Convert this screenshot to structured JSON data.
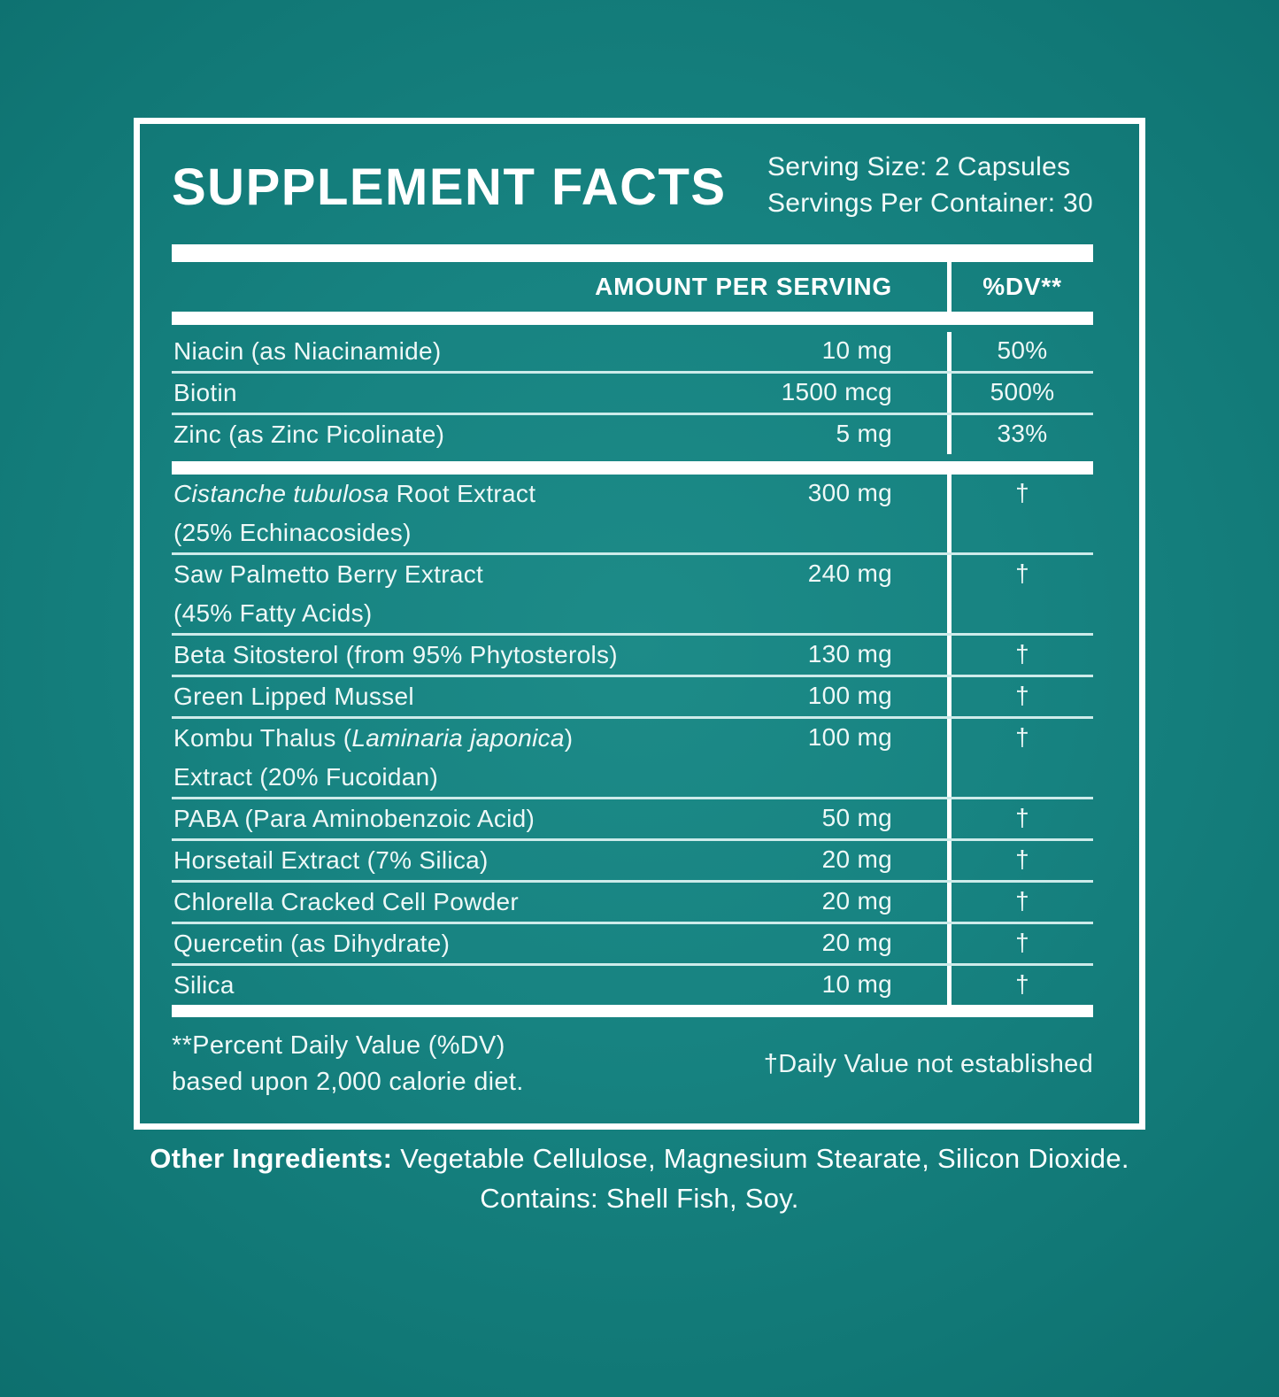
{
  "header": {
    "title": "SUPPLEMENT FACTS",
    "serving_size": "Serving Size: 2 Capsules",
    "servings_per_container": "Servings Per Container: 30"
  },
  "table": {
    "columns": {
      "amount": "AMOUNT PER SERVING",
      "dv": "%DV**"
    },
    "sections": [
      {
        "rows": [
          {
            "name": [
              {
                "text": "Niacin (as Niacinamide)",
                "italic": false
              }
            ],
            "amount": "10 mg",
            "dv": "50%"
          },
          {
            "name": [
              {
                "text": "Biotin",
                "italic": false
              }
            ],
            "amount": "1500 mcg",
            "dv": "500%"
          },
          {
            "name": [
              {
                "text": "Zinc (as Zinc Picolinate)",
                "italic": false
              }
            ],
            "amount": "5 mg",
            "dv": "33%"
          }
        ]
      },
      {
        "rows": [
          {
            "name": [
              {
                "text": "Cistanche tubulosa",
                "italic": true
              },
              {
                "text": " Root Extract",
                "italic": false
              }
            ],
            "name_line2": "(25% Echinacosides)",
            "amount": "300 mg",
            "dv": "†"
          },
          {
            "name": [
              {
                "text": "Saw Palmetto Berry Extract",
                "italic": false
              }
            ],
            "name_line2": "(45% Fatty Acids)",
            "amount": "240 mg",
            "dv": "†"
          },
          {
            "name": [
              {
                "text": "Beta Sitosterol (from 95% Phytosterols)",
                "italic": false
              }
            ],
            "amount": "130 mg",
            "dv": "†"
          },
          {
            "name": [
              {
                "text": "Green Lipped Mussel",
                "italic": false
              }
            ],
            "amount": "100 mg",
            "dv": "†"
          },
          {
            "name": [
              {
                "text": "Kombu Thalus (",
                "italic": false
              },
              {
                "text": "Laminaria japonica",
                "italic": true
              },
              {
                "text": ")",
                "italic": false
              }
            ],
            "name_line2": "Extract (20% Fucoidan)",
            "amount": "100 mg",
            "dv": "†"
          },
          {
            "name": [
              {
                "text": "PABA (Para Aminobenzoic Acid)",
                "italic": false
              }
            ],
            "amount": "50 mg",
            "dv": "†"
          },
          {
            "name": [
              {
                "text": "Horsetail Extract (7% Silica)",
                "italic": false
              }
            ],
            "amount": "20 mg",
            "dv": "†"
          },
          {
            "name": [
              {
                "text": "Chlorella Cracked Cell Powder",
                "italic": false
              }
            ],
            "amount": "20 mg",
            "dv": "†"
          },
          {
            "name": [
              {
                "text": "Quercetin (as Dihydrate)",
                "italic": false
              }
            ],
            "amount": "20 mg",
            "dv": "†"
          },
          {
            "name": [
              {
                "text": "Silica",
                "italic": false
              }
            ],
            "amount": "10 mg",
            "dv": "†"
          }
        ]
      }
    ]
  },
  "footnotes": {
    "left_line1": "**Percent Daily Value (%DV)",
    "left_line2": "based upon 2,000 calorie diet.",
    "right": "†Daily Value not established"
  },
  "other_ingredients": {
    "label": "Other Ingredients:",
    "text": " Vegetable Cellulose, Magnesium Stearate, Silicon Dioxide.",
    "contains": "Contains: Shell Fish, Soy."
  },
  "colors": {
    "background_center": "#1d8b88",
    "background_edge": "#0d6f6e",
    "panel_border": "#ffffff",
    "thick_bar": "#ffffff",
    "thin_line": "#cdebea",
    "text": "#eef8f7"
  }
}
